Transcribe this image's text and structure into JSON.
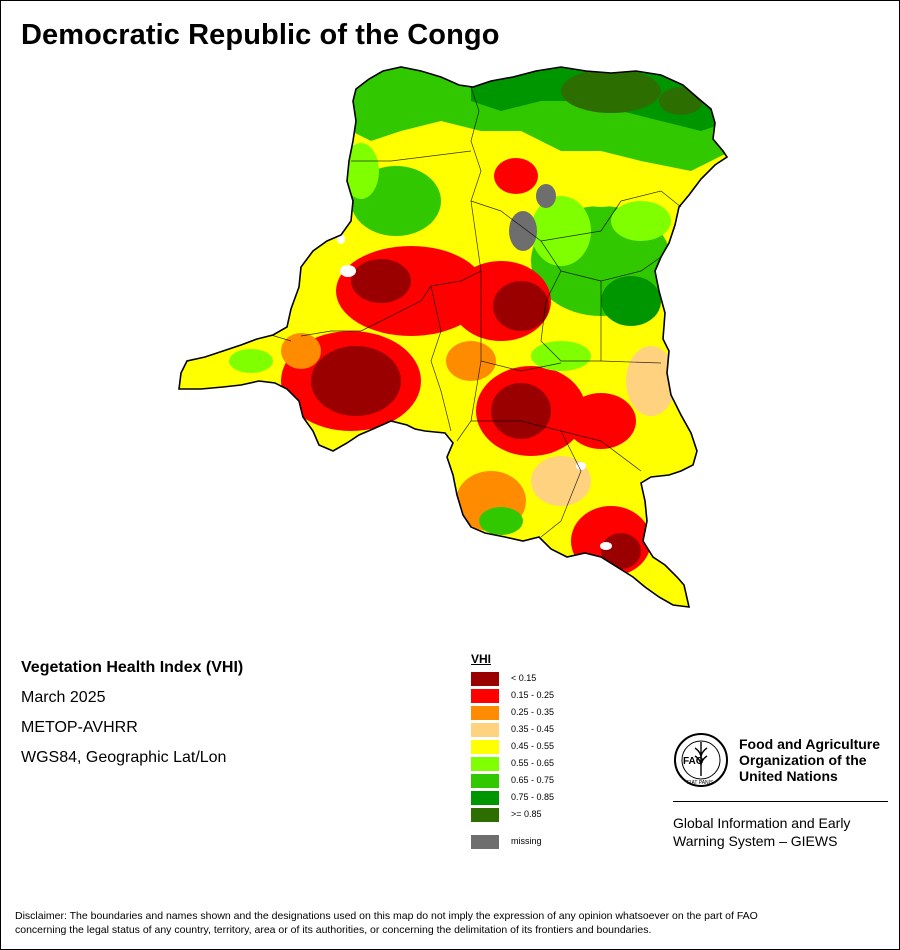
{
  "map": {
    "title": "Democratic Republic of the Congo"
  },
  "info": {
    "index_name": "Vegetation Health Index (VHI)",
    "period": "March 2025",
    "sensor": "METOP-AVHRR",
    "projection": "WGS84, Geographic Lat/Lon"
  },
  "legend": {
    "title": "VHI",
    "items": [
      {
        "label": "< 0.15",
        "color": "#9b0000"
      },
      {
        "label": "0.15 - 0.25",
        "color": "#ff0000"
      },
      {
        "label": "0.25 - 0.35",
        "color": "#ff8c00"
      },
      {
        "label": "0.35 - 0.45",
        "color": "#ffd27f"
      },
      {
        "label": "0.45 - 0.55",
        "color": "#ffff00"
      },
      {
        "label": "0.55 - 0.65",
        "color": "#7fff00"
      },
      {
        "label": "0.65 - 0.75",
        "color": "#32c800"
      },
      {
        "label": "0.75 - 0.85",
        "color": "#009600"
      },
      {
        "label": ">= 0.85",
        "color": "#2d6e00"
      }
    ],
    "missing": {
      "label": "missing",
      "color": "#6e6e6e"
    }
  },
  "organization": {
    "logo_text": "FAO",
    "logo_motto": "FIAT PANIS",
    "name_line1": "Food and Agriculture",
    "name_line2": "Organization of the",
    "name_line3": "United Nations",
    "program_line1": "Global Information and Early",
    "program_line2": "Warning System – GIEWS"
  },
  "disclaimer": {
    "line1": "Disclaimer: The boundaries and names shown and the designations used on this map do not imply the expression of any opinion whatsoever on the part of FAO",
    "line2": "concerning the legal status of any country, territory, area or of its authorities, or concerning the delimitation of its frontiers and boundaries."
  }
}
